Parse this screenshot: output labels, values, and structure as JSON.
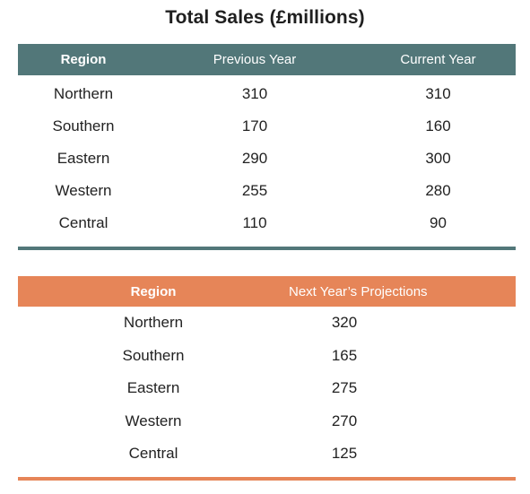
{
  "title": "Total Sales (£millions)",
  "colors": {
    "table1_header": "#527779",
    "table2_header": "#e68558"
  },
  "table1": {
    "headers": [
      "Region",
      "Previous Year",
      "Current Year"
    ],
    "rows": [
      [
        "Northern",
        "310",
        "310"
      ],
      [
        "Southern",
        "170",
        "160"
      ],
      [
        "Eastern",
        "290",
        "300"
      ],
      [
        "Western",
        "255",
        "280"
      ],
      [
        "Central",
        "110",
        "90"
      ]
    ]
  },
  "table2": {
    "headers": [
      "Region",
      "Next Year’s Projections"
    ],
    "rows": [
      [
        "Northern",
        "320"
      ],
      [
        "Southern",
        "165"
      ],
      [
        "Eastern",
        "275"
      ],
      [
        "Western",
        "270"
      ],
      [
        "Central",
        "125"
      ]
    ]
  }
}
